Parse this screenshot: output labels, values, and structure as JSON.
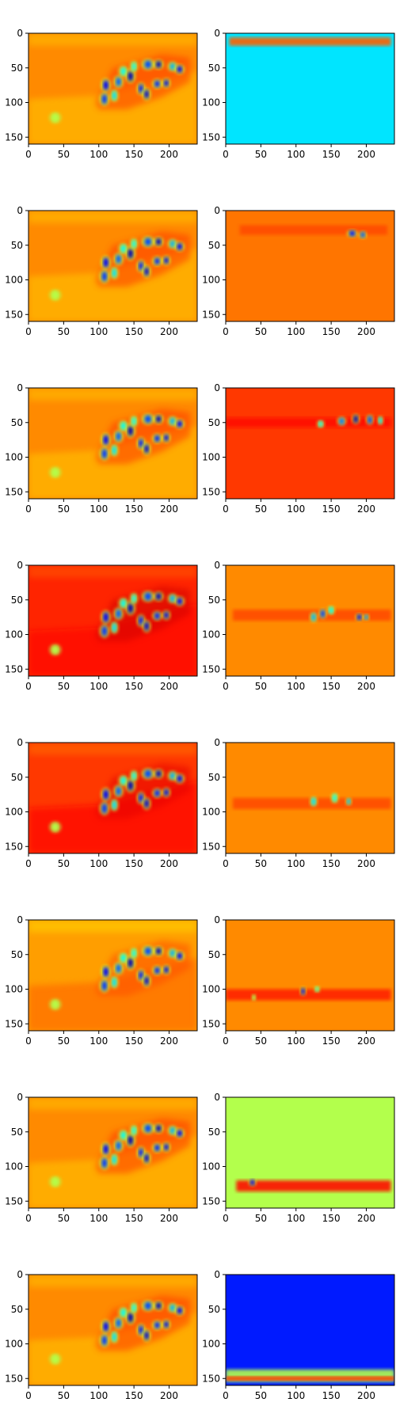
{
  "figure": {
    "rows": 8,
    "cols": 2
  },
  "chart_data": {
    "type": "heatmap",
    "colormap": "jet",
    "panel_count": 16,
    "x_range": [
      0,
      240
    ],
    "y_range": [
      0,
      160
    ],
    "y_inverted": true,
    "x_ticks": [
      0,
      50,
      100,
      150,
      200
    ],
    "y_ticks": [
      0,
      50,
      100,
      150
    ],
    "x_tick_labels": [
      "0",
      "50",
      "100",
      "150",
      "200"
    ],
    "y_tick_labels": [
      "0",
      "50",
      "100",
      "150"
    ],
    "grid": false,
    "legend": "none",
    "left_column_pattern": {
      "description": "Diagonal band with many oval blobs; flat background plus darker lower-left region",
      "blobs": [
        {
          "x": 110,
          "y": 75,
          "w": 6,
          "h": 10,
          "v": 0.12
        },
        {
          "x": 108,
          "y": 95,
          "w": 6,
          "h": 10,
          "v": 0.18
        },
        {
          "x": 122,
          "y": 90,
          "w": 5,
          "h": 9,
          "v": 0.35
        },
        {
          "x": 128,
          "y": 70,
          "w": 6,
          "h": 9,
          "v": 0.22
        },
        {
          "x": 135,
          "y": 55,
          "w": 6,
          "h": 8,
          "v": 0.38
        },
        {
          "x": 145,
          "y": 62,
          "w": 6,
          "h": 10,
          "v": 0.05
        },
        {
          "x": 150,
          "y": 48,
          "w": 5,
          "h": 8,
          "v": 0.4
        },
        {
          "x": 160,
          "y": 80,
          "w": 5,
          "h": 9,
          "v": 0.14
        },
        {
          "x": 168,
          "y": 88,
          "w": 5,
          "h": 9,
          "v": 0.08
        },
        {
          "x": 170,
          "y": 45,
          "w": 8,
          "h": 8,
          "v": 0.2
        },
        {
          "x": 185,
          "y": 45,
          "w": 6,
          "h": 7,
          "v": 0.06
        },
        {
          "x": 183,
          "y": 73,
          "w": 6,
          "h": 7,
          "v": 0.16
        },
        {
          "x": 196,
          "y": 72,
          "w": 5,
          "h": 7,
          "v": 0.1
        },
        {
          "x": 205,
          "y": 48,
          "w": 6,
          "h": 7,
          "v": 0.3
        },
        {
          "x": 215,
          "y": 52,
          "w": 6,
          "h": 7,
          "v": 0.12
        },
        {
          "x": 38,
          "y": 122,
          "w": 7,
          "h": 8,
          "v": 0.55
        }
      ]
    },
    "panels": [
      {
        "row": 1,
        "col": 1,
        "bg": 0.74,
        "lower": 0.7
      },
      {
        "row": 1,
        "col": 2,
        "bg": 0.35,
        "band_y": 12,
        "band_h": 12,
        "band_v": 0.78,
        "band_x": [
          5,
          235
        ]
      },
      {
        "row": 2,
        "col": 1,
        "bg": 0.74,
        "lower": 0.7
      },
      {
        "row": 2,
        "col": 2,
        "bg": 0.76,
        "band_y": 28,
        "band_h": 14,
        "band_v": 0.8,
        "band_x": [
          20,
          230
        ],
        "blobs": [
          {
            "x": 180,
            "y": 33,
            "w": 7,
            "h": 6,
            "v": 0.15
          },
          {
            "x": 195,
            "y": 35,
            "w": 5,
            "h": 6,
            "v": 0.2
          }
        ]
      },
      {
        "row": 3,
        "col": 1,
        "bg": 0.74,
        "lower": 0.7
      },
      {
        "row": 3,
        "col": 2,
        "bg": 0.82,
        "band_y": 50,
        "band_h": 14,
        "band_v": 0.86,
        "band_x": [
          0,
          235
        ],
        "blobs": [
          {
            "x": 135,
            "y": 52,
            "w": 5,
            "h": 6,
            "v": 0.4
          },
          {
            "x": 165,
            "y": 48,
            "w": 6,
            "h": 7,
            "v": 0.25
          },
          {
            "x": 185,
            "y": 45,
            "w": 5,
            "h": 8,
            "v": 0.05
          },
          {
            "x": 205,
            "y": 46,
            "w": 5,
            "h": 8,
            "v": 0.2
          },
          {
            "x": 220,
            "y": 47,
            "w": 4,
            "h": 7,
            "v": 0.35
          }
        ]
      },
      {
        "row": 4,
        "col": 1,
        "bg": 0.84,
        "lower": 0.86
      },
      {
        "row": 4,
        "col": 2,
        "bg": 0.74,
        "band_y": 72,
        "band_h": 16,
        "band_v": 0.8,
        "band_x": [
          10,
          235
        ],
        "blobs": [
          {
            "x": 125,
            "y": 75,
            "w": 5,
            "h": 8,
            "v": 0.3
          },
          {
            "x": 138,
            "y": 70,
            "w": 5,
            "h": 8,
            "v": 0.18
          },
          {
            "x": 150,
            "y": 65,
            "w": 5,
            "h": 7,
            "v": 0.38
          },
          {
            "x": 190,
            "y": 75,
            "w": 5,
            "h": 6,
            "v": 0.1
          },
          {
            "x": 200,
            "y": 75,
            "w": 4,
            "h": 5,
            "v": 0.25
          }
        ]
      },
      {
        "row": 5,
        "col": 1,
        "bg": 0.82,
        "lower": 0.86
      },
      {
        "row": 5,
        "col": 2,
        "bg": 0.74,
        "band_y": 88,
        "band_h": 16,
        "band_v": 0.8,
        "band_x": [
          10,
          235
        ],
        "blobs": [
          {
            "x": 125,
            "y": 85,
            "w": 5,
            "h": 8,
            "v": 0.35
          },
          {
            "x": 155,
            "y": 80,
            "w": 5,
            "h": 8,
            "v": 0.4
          },
          {
            "x": 175,
            "y": 85,
            "w": 4,
            "h": 6,
            "v": 0.3
          }
        ]
      },
      {
        "row": 6,
        "col": 1,
        "bg": 0.72,
        "lower": 0.76
      },
      {
        "row": 6,
        "col": 2,
        "bg": 0.74,
        "band_y": 108,
        "band_h": 16,
        "band_v": 0.84,
        "band_x": [
          0,
          235
        ],
        "blobs": [
          {
            "x": 110,
            "y": 103,
            "w": 4,
            "h": 7,
            "v": 0.1
          },
          {
            "x": 130,
            "y": 100,
            "w": 4,
            "h": 5,
            "v": 0.45
          },
          {
            "x": 40,
            "y": 112,
            "w": 3,
            "h": 5,
            "v": 0.55
          }
        ]
      },
      {
        "row": 7,
        "col": 1,
        "bg": 0.74,
        "lower": 0.7
      },
      {
        "row": 7,
        "col": 2,
        "bg": 0.55,
        "band_y": 128,
        "band_h": 16,
        "band_v": 0.86,
        "band_x": [
          15,
          235
        ],
        "blobs": [
          {
            "x": 38,
            "y": 123,
            "w": 5,
            "h": 6,
            "v": 0.1
          }
        ]
      },
      {
        "row": 8,
        "col": 1,
        "bg": 0.74,
        "lower": 0.7
      },
      {
        "row": 8,
        "col": 2,
        "bg": 0.15,
        "band_y": 146,
        "band_h": 18,
        "band_v": 0.55,
        "band_x": [
          0,
          240
        ],
        "band2_y": 150,
        "band2_h": 6,
        "band2_v": 0.82
      }
    ]
  }
}
